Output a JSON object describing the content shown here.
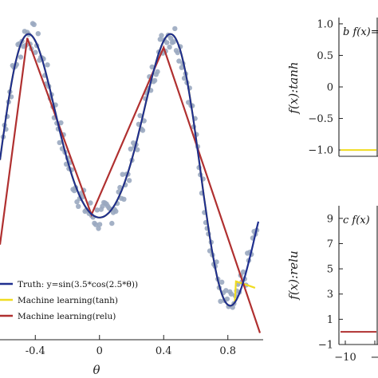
{
  "chart_data": [
    {
      "type": "line",
      "panel": "main",
      "xlabel": "θ",
      "ylabel": "",
      "xlim": [
        -0.62,
        1.02
      ],
      "ylim": [
        -1.25,
        1.25
      ],
      "xticks": [
        "-0.4",
        "0",
        "0.4",
        "0.8"
      ],
      "xtick_values": [
        -0.4,
        0,
        0.4,
        0.8
      ],
      "grid": false,
      "legend_position": "bottom-left",
      "series": [
        {
          "name": "Truth: y=sin(3.5*cos(2.5*θ))",
          "color": "#1f2f8f",
          "role": "truth-line"
        },
        {
          "name": "Machine learning(tanh)",
          "color": "#f0dc20",
          "role": "tanh-line"
        },
        {
          "name": "Machine learning(relu)",
          "color": "#b03030",
          "role": "relu-line"
        }
      ],
      "scatter_color": "#9aa8c0",
      "relu_points": {
        "x": [
          -0.62,
          -0.45,
          -0.05,
          0.4,
          1.0
        ],
        "y": [
          -0.55,
          0.97,
          -0.33,
          0.9,
          -1.2
        ]
      }
    },
    {
      "type": "line",
      "panel": "b",
      "panel_label": "b  f(x)=",
      "ylabel": "f(x):tanh",
      "ylim": [
        -1.1,
        1.1
      ],
      "yticks": [
        "1.0",
        "0.5",
        "0",
        "−0.5",
        "−1.0"
      ],
      "ytick_values": [
        1.0,
        0.5,
        0,
        -0.5,
        -1.0
      ],
      "series": [
        {
          "values": [
            -1.0,
            -1.0
          ],
          "color": "#f0dc20"
        }
      ]
    },
    {
      "type": "line",
      "panel": "c",
      "panel_label": "c  f(x)",
      "ylabel": "f(x):relu",
      "ylim": [
        -1,
        10
      ],
      "yticks": [
        "9",
        "7",
        "5",
        "3",
        "1",
        "−1"
      ],
      "ytick_values": [
        9,
        7,
        5,
        3,
        1,
        -1
      ],
      "xticks": [
        "−10",
        "−"
      ],
      "series": [
        {
          "values": [
            0,
            0
          ],
          "color": "#b03030"
        }
      ]
    }
  ]
}
